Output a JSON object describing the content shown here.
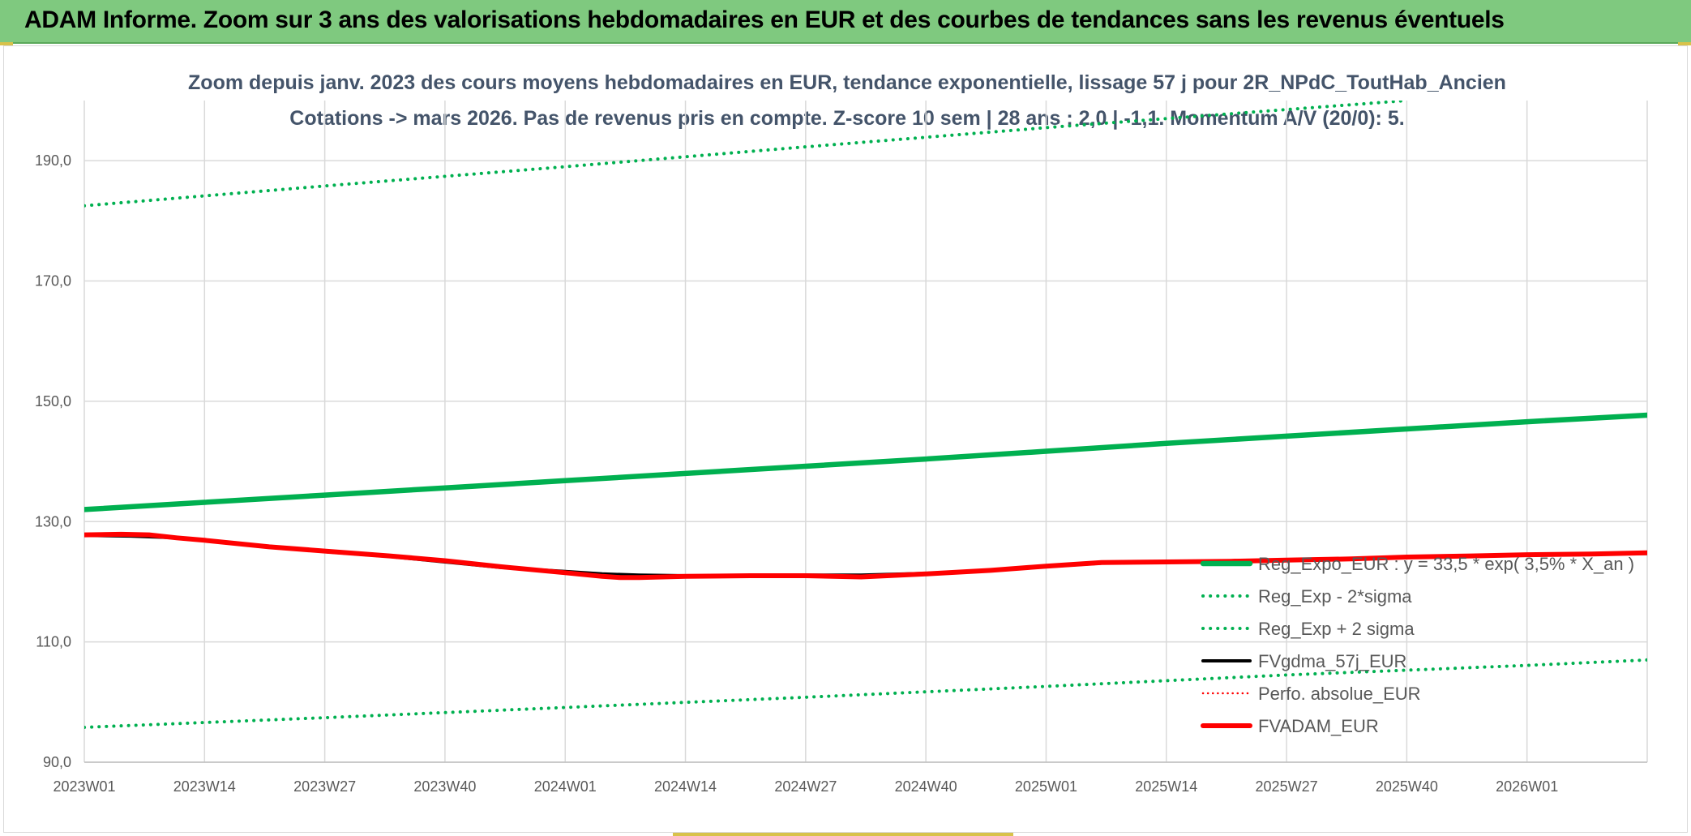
{
  "banner": {
    "title": "ADAM Informe. Zoom sur 3 ans des valorisations hebdomadaires en EUR et des courbes de tendances sans les revenus éventuels"
  },
  "colors": {
    "banner_bg": "#7fc97f",
    "reg_expo": "#00b050",
    "fv_gdma": "#000000",
    "perfo": "#ff0000",
    "fvadam": "#ff0000",
    "title_text": "#44546a"
  },
  "chart_data": {
    "type": "line",
    "title": "Zoom depuis janv. 2023 des cours moyens hebdomadaires en EUR, tendance exponentielle, lissage 57 j pour 2R_NPdC_ToutHab_Ancien",
    "subtitle": "Cotations -> mars 2026. Pas de revenus pris en compte. Z-score 10 sem | 28 ans : 2,0 | -1,1. Momentum A/V (20/0): 5.",
    "xlabel": "",
    "ylabel": "",
    "ylim": [
      90,
      200
    ],
    "y_ticks": [
      "90,0",
      "110,0",
      "130,0",
      "150,0",
      "170,0",
      "190,0"
    ],
    "x_ticks": [
      "2023W01",
      "2023W14",
      "2023W27",
      "2023W40",
      "2024W01",
      "2024W14",
      "2024W27",
      "2024W40",
      "2025W01",
      "2025W14",
      "2025W27",
      "2025W40",
      "2026W01"
    ],
    "x_range_weeks": [
      0,
      169
    ],
    "grid": true,
    "legend_position": "right, inside plot area (lower)",
    "series": [
      {
        "name": "Reg_Expo_EUR : y = 33,5 * exp( 3,5% * X_an )",
        "style": "solid-thick",
        "color": "#00b050",
        "points": [
          [
            0,
            132.0
          ],
          [
            13,
            133.2
          ],
          [
            26,
            134.4
          ],
          [
            39,
            135.6
          ],
          [
            52,
            136.8
          ],
          [
            65,
            138.0
          ],
          [
            78,
            139.2
          ],
          [
            91,
            140.4
          ],
          [
            104,
            141.7
          ],
          [
            117,
            143.0
          ],
          [
            130,
            144.2
          ],
          [
            143,
            145.4
          ],
          [
            156,
            146.6
          ],
          [
            169,
            147.7
          ]
        ]
      },
      {
        "name": "Reg_Exp - 2*sigma",
        "style": "dotted",
        "color": "#00b050",
        "points": [
          [
            0,
            95.8
          ],
          [
            26,
            97.4
          ],
          [
            52,
            99.1
          ],
          [
            78,
            100.8
          ],
          [
            104,
            102.6
          ],
          [
            130,
            104.5
          ],
          [
            156,
            106.1
          ],
          [
            169,
            107.0
          ]
        ]
      },
      {
        "name": "Reg_Exp + 2 sigma",
        "style": "dotted",
        "color": "#00b050",
        "points": [
          [
            0,
            182.5
          ],
          [
            26,
            185.8
          ],
          [
            52,
            189.0
          ],
          [
            78,
            192.3
          ],
          [
            100,
            195.0
          ],
          [
            104,
            195.5
          ],
          [
            130,
            198.5
          ],
          [
            143,
            200.0
          ]
        ]
      },
      {
        "name": "FVgdma_57j_EUR",
        "style": "solid",
        "color": "#000000",
        "points": [
          [
            0,
            127.7
          ],
          [
            5,
            127.6
          ],
          [
            10,
            127.3
          ],
          [
            13,
            126.9
          ],
          [
            20,
            125.9
          ],
          [
            26,
            125.0
          ],
          [
            33,
            124.2
          ],
          [
            39,
            123.3
          ],
          [
            45,
            122.4
          ],
          [
            52,
            121.7
          ],
          [
            56,
            121.3
          ],
          [
            60,
            121.1
          ],
          [
            65,
            121.0
          ],
          [
            72,
            121.0
          ],
          [
            78,
            121.1
          ],
          [
            84,
            121.1
          ],
          [
            91,
            121.4
          ],
          [
            98,
            121.9
          ],
          [
            104,
            122.5
          ],
          [
            110,
            123.1
          ],
          [
            117,
            123.3
          ],
          [
            124,
            123.5
          ],
          [
            130,
            123.6
          ],
          [
            137,
            123.8
          ],
          [
            143,
            124.1
          ],
          [
            150,
            124.3
          ],
          [
            156,
            124.5
          ],
          [
            163,
            124.6
          ],
          [
            169,
            124.7
          ]
        ]
      },
      {
        "name": "Perfo. absolue_EUR",
        "style": "dotted",
        "color": "#ff0000",
        "points": []
      },
      {
        "name": "FVADAM_EUR",
        "style": "solid-thick",
        "color": "#ff0000",
        "points": [
          [
            0,
            127.8
          ],
          [
            4,
            127.9
          ],
          [
            7,
            127.8
          ],
          [
            10,
            127.3
          ],
          [
            13,
            126.9
          ],
          [
            20,
            125.8
          ],
          [
            26,
            125.1
          ],
          [
            33,
            124.3
          ],
          [
            39,
            123.5
          ],
          [
            45,
            122.5
          ],
          [
            52,
            121.5
          ],
          [
            56,
            120.9
          ],
          [
            58,
            120.7
          ],
          [
            60,
            120.7
          ],
          [
            65,
            120.9
          ],
          [
            72,
            121.0
          ],
          [
            78,
            121.0
          ],
          [
            84,
            120.8
          ],
          [
            91,
            121.3
          ],
          [
            98,
            121.9
          ],
          [
            104,
            122.6
          ],
          [
            110,
            123.2
          ],
          [
            117,
            123.3
          ],
          [
            124,
            123.4
          ],
          [
            130,
            123.6
          ],
          [
            137,
            123.8
          ],
          [
            143,
            124.1
          ],
          [
            150,
            124.3
          ],
          [
            156,
            124.5
          ],
          [
            163,
            124.6
          ],
          [
            169,
            124.8
          ]
        ]
      }
    ]
  }
}
